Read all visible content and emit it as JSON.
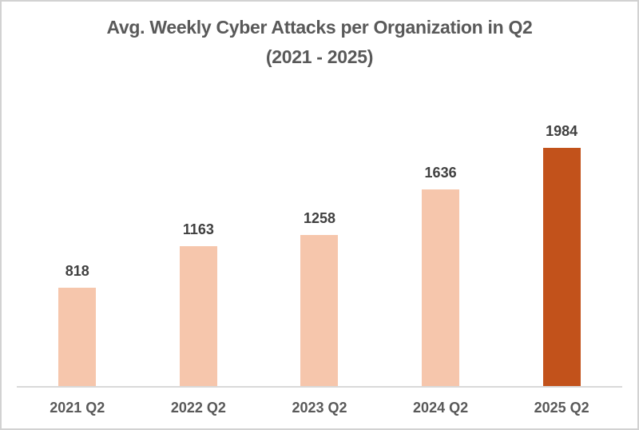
{
  "title": {
    "line1": "Avg. Weekly Cyber Attacks per Organization in Q2",
    "line2": "(2021 - 2025)"
  },
  "chart_data": {
    "type": "bar",
    "title": "Avg. Weekly Cyber Attacks per Organization in Q2 (2021 - 2025)",
    "categories": [
      "2021 Q2",
      "2022 Q2",
      "2023 Q2",
      "2024 Q2",
      "2025 Q2"
    ],
    "values": [
      818,
      1163,
      1258,
      1636,
      1984
    ],
    "data_labels": [
      "818",
      "1163",
      "1258",
      "1636",
      "1984"
    ],
    "xlabel": "",
    "ylabel": "",
    "ylim": [
      0,
      2000
    ],
    "gridlines": false,
    "legend": false,
    "bar_color": "#f6c6ac",
    "highlight_color": "#c2521b",
    "highlight_index": 4,
    "baseline_color": "#d9d9d9",
    "title_color": "#595959",
    "axis_label_color": "#595959",
    "data_label_color": "#404040"
  }
}
